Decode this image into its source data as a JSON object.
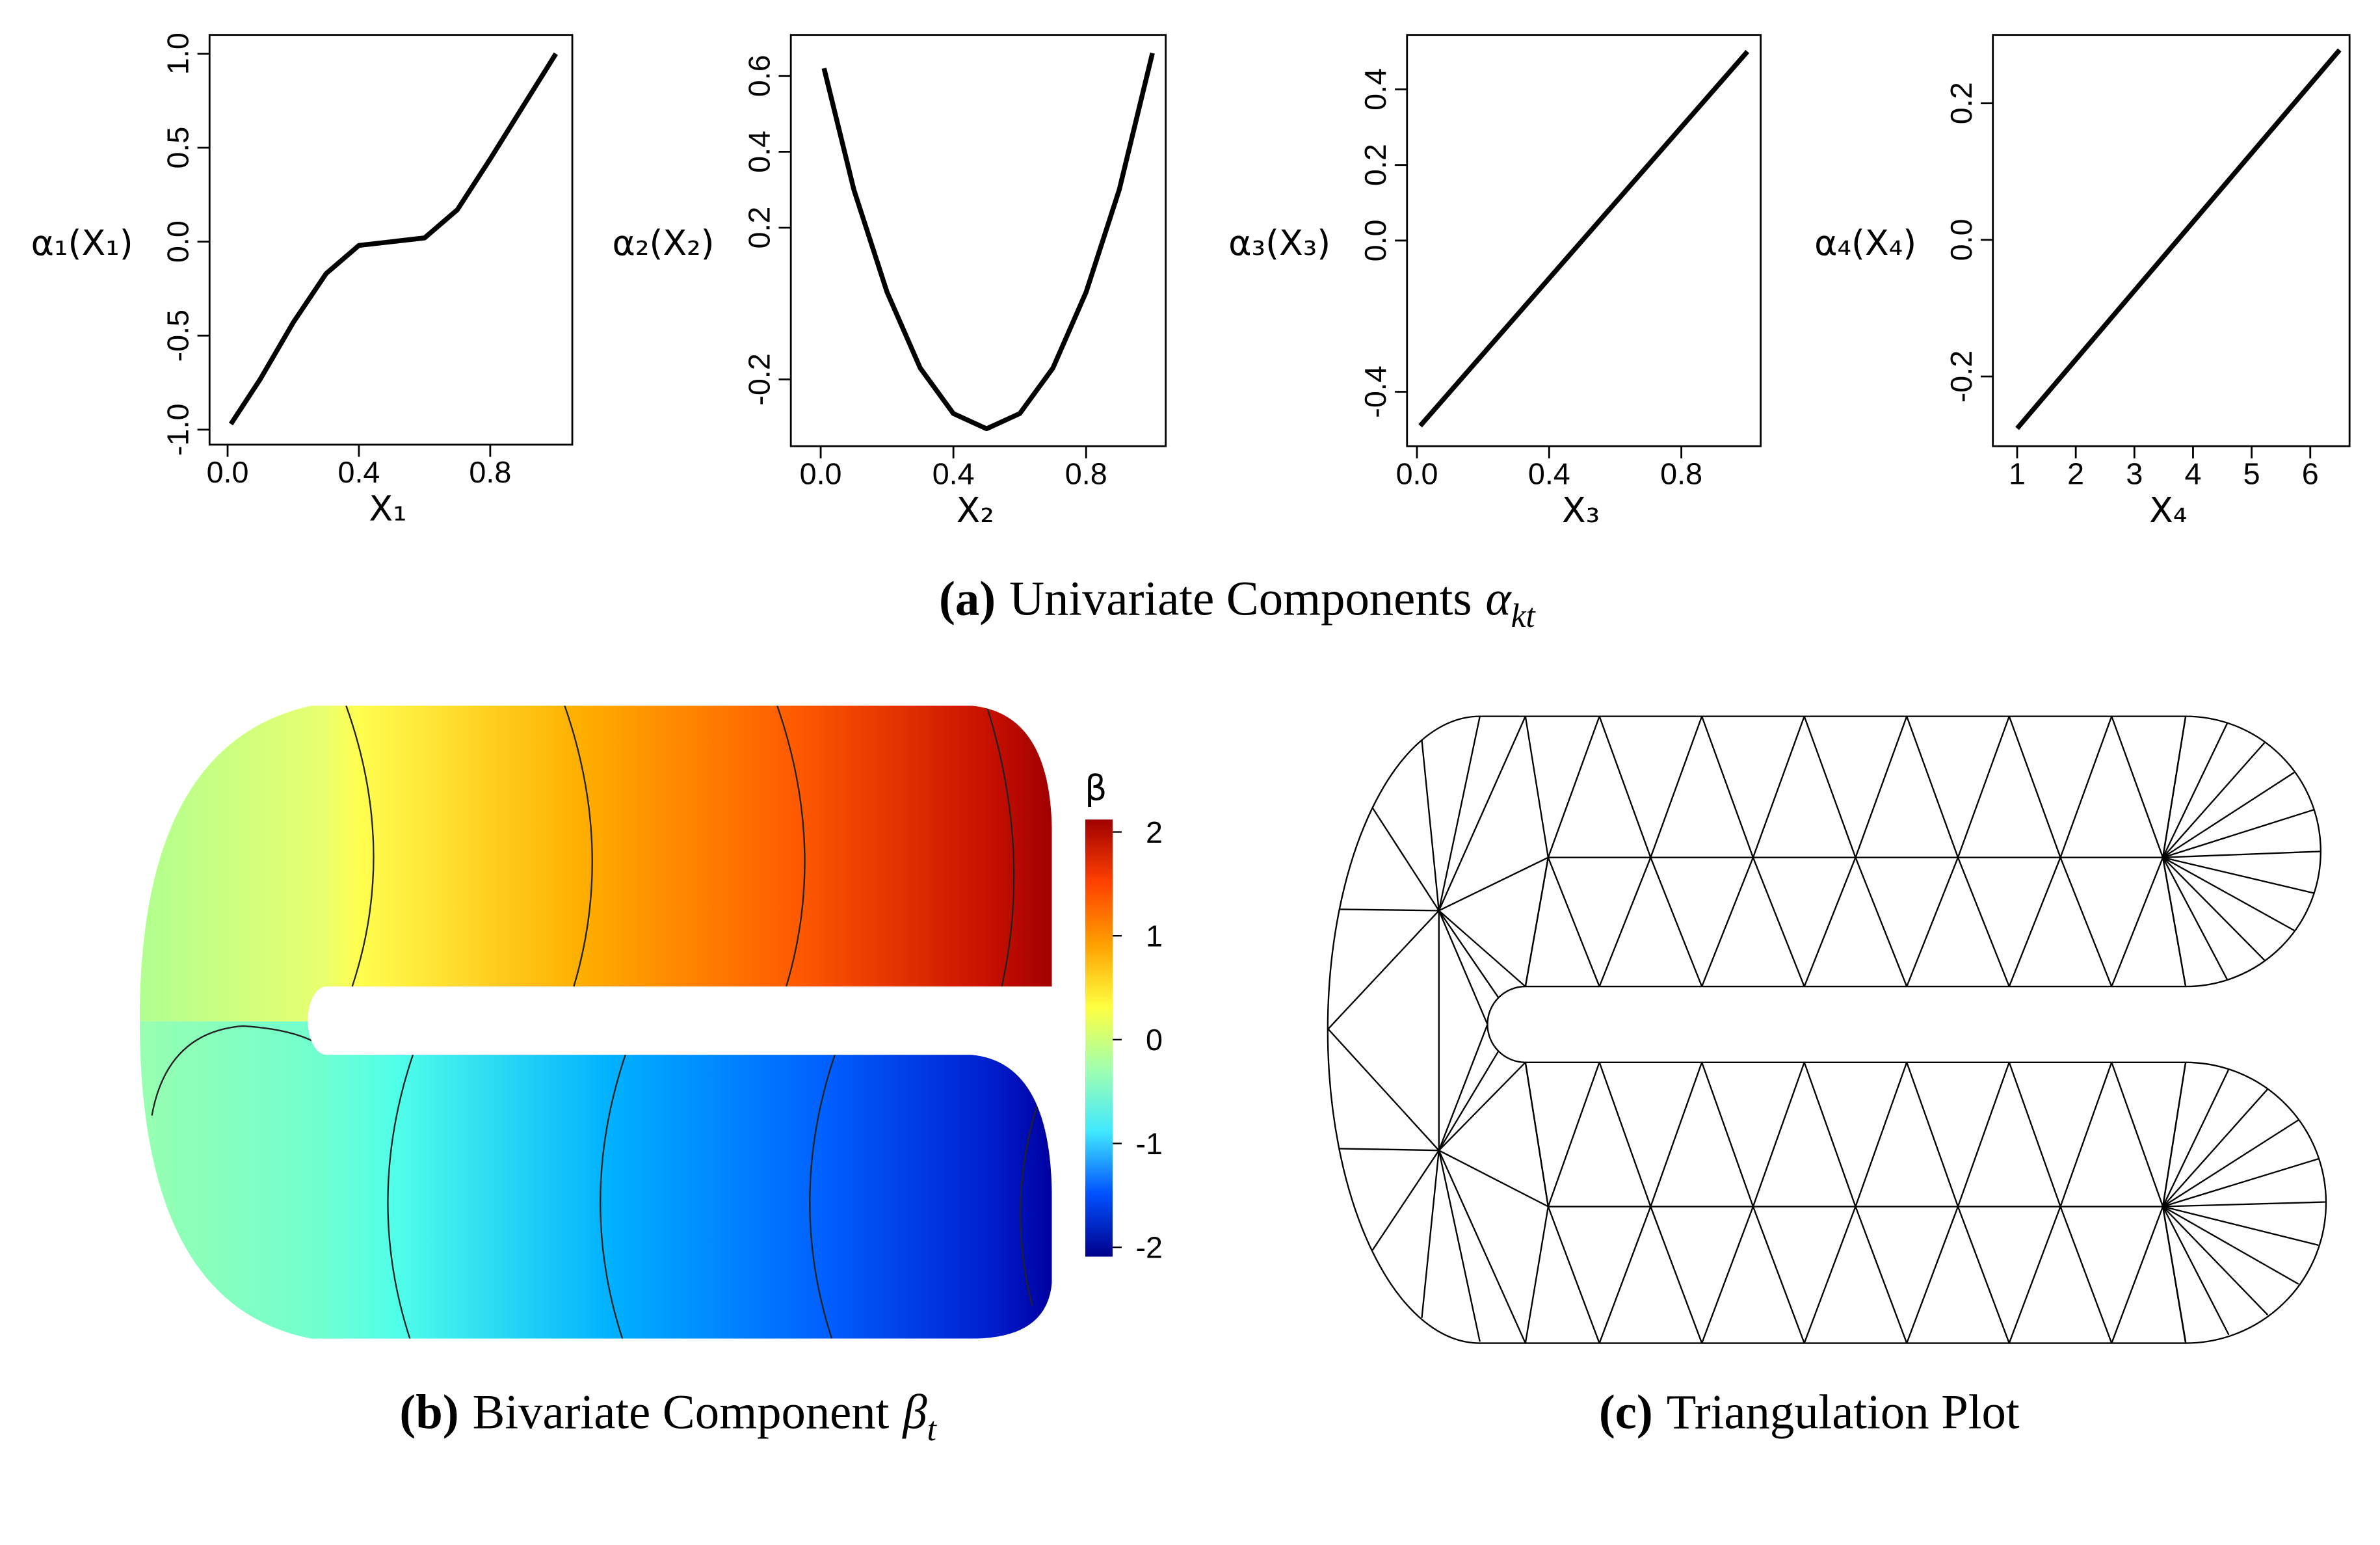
{
  "chart_data": [
    {
      "type": "line",
      "ylabel": "α₁(X₁)",
      "xlabel": "X₁",
      "color": "#000000",
      "x": [
        0.01,
        0.1,
        0.2,
        0.3,
        0.4,
        0.5,
        0.6,
        0.7,
        0.8,
        0.9,
        1.0
      ],
      "values": [
        -0.97,
        -0.73,
        -0.43,
        -0.17,
        -0.02,
        0,
        0.02,
        0.17,
        0.44,
        0.72,
        1.0
      ],
      "xlim": [
        -0.055,
        1.05
      ],
      "ylim": [
        -1.08,
        1.1
      ],
      "xticks": [
        {
          "value": 0,
          "label": "0.0"
        },
        0.4,
        0.8
      ],
      "yticks": [
        {
          "value": -1,
          "label": "-1.0"
        },
        -0.5,
        {
          "value": 0,
          "label": "0.0"
        },
        0.5,
        {
          "value": 1,
          "label": "1.0"
        }
      ]
    },
    {
      "type": "line",
      "ylabel": "α₂(X₂)",
      "xlabel": "X₂",
      "color": "#000000",
      "x": [
        0.01,
        0.1,
        0.2,
        0.3,
        0.4,
        0.5,
        0.6,
        0.7,
        0.8,
        0.9,
        1.0
      ],
      "values": [
        0.62,
        0.3,
        0.03,
        -0.17,
        -0.29,
        -0.33,
        -0.29,
        -0.17,
        0.03,
        0.3,
        0.66
      ],
      "xlim": [
        -0.09,
        1.04
      ],
      "ylim": [
        -0.376,
        0.708
      ],
      "xticks": [
        {
          "value": 0,
          "label": "0.0"
        },
        0.4,
        0.8
      ],
      "yticks": [
        -0.2,
        0.2,
        0.4,
        0.6
      ]
    },
    {
      "type": "line",
      "ylabel": "α₃(X₃)",
      "xlabel": "X₃",
      "color": "#000000",
      "x": [
        0.01,
        0.5,
        1.0
      ],
      "values": [
        -0.49,
        0,
        0.5
      ],
      "xlim": [
        -0.03,
        1.04
      ],
      "ylim": [
        -0.544,
        0.544
      ],
      "xticks": [
        {
          "value": 0,
          "label": "0.0"
        },
        0.4,
        0.8
      ],
      "yticks": [
        -0.4,
        {
          "value": 0,
          "label": "0.0"
        },
        0.2,
        0.4
      ]
    },
    {
      "type": "line",
      "ylabel": "α₄(X₄)",
      "xlabel": "X₄",
      "color": "#000000",
      "x": [
        1,
        6.5
      ],
      "values": [
        -0.276,
        0.278
      ],
      "xlim": [
        0.586,
        6.67
      ],
      "ylim": [
        -0.302,
        0.3
      ],
      "xticks": [
        1,
        2,
        3,
        4,
        5,
        6
      ],
      "yticks": [
        -0.2,
        {
          "value": 0,
          "label": "0.0"
        },
        0.2
      ]
    },
    {
      "type": "heatmap",
      "colorbar_title": "β",
      "zlim": [
        -2.09,
        2.12
      ],
      "zticks": [
        2,
        1,
        0,
        -1,
        -2
      ],
      "colors": [
        "#00008b",
        "#0050ff",
        "#40e8ff",
        "#a0ffb0",
        "#ffff40",
        "#ffa000",
        "#ff4000",
        "#a00000"
      ]
    }
  ],
  "captions": [
    {
      "label": "(a)",
      "text": "Univariate Components",
      "symbol": "α",
      "subscript": "kt"
    },
    {
      "label": "(b)",
      "text": "Bivariate Component",
      "symbol": "β",
      "subscript": "t"
    },
    {
      "label": "(c)",
      "text": "Triangulation Plot"
    }
  ]
}
